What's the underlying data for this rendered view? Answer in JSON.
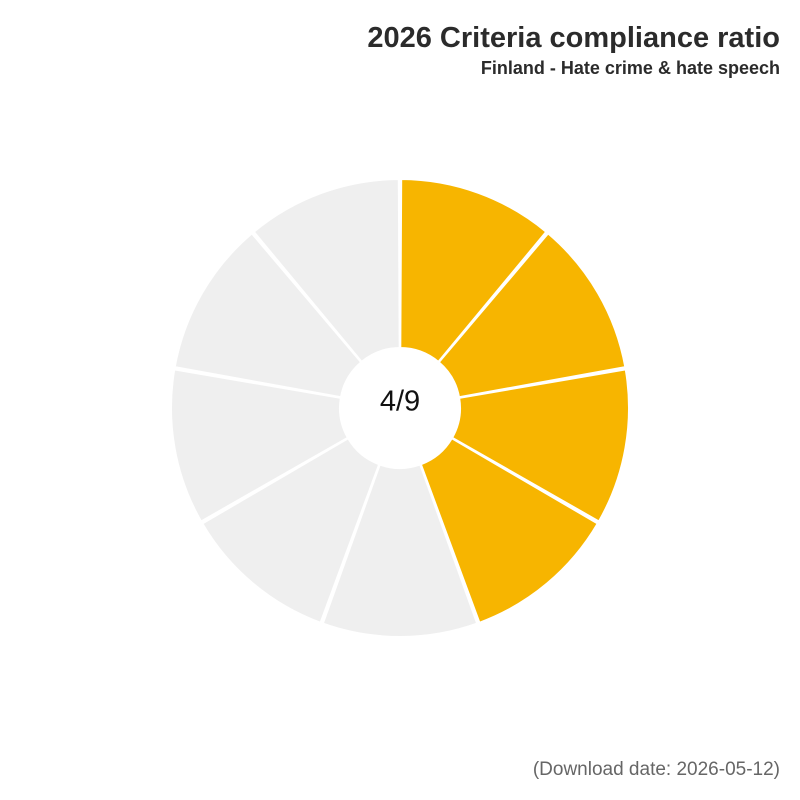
{
  "header": {
    "title": "2026 Criteria compliance ratio",
    "subtitle": "Finland - Hate crime & hate speech"
  },
  "footer": {
    "download_date": "(Download date: 2026-05-12)"
  },
  "colors": {
    "met": "#F7B500",
    "not_met": "#EFEFEF",
    "separator": "#FFFFFF"
  },
  "chart_data": {
    "type": "pie",
    "center_label": "4/9",
    "total_criteria": 9,
    "met_criteria": 4,
    "segments": [
      {
        "status": "met",
        "value": 1
      },
      {
        "status": "met",
        "value": 1
      },
      {
        "status": "met",
        "value": 1
      },
      {
        "status": "met",
        "value": 1
      },
      {
        "status": "not_met",
        "value": 1
      },
      {
        "status": "not_met",
        "value": 1
      },
      {
        "status": "not_met",
        "value": 1
      },
      {
        "status": "not_met",
        "value": 1
      },
      {
        "status": "not_met",
        "value": 1
      }
    ]
  }
}
